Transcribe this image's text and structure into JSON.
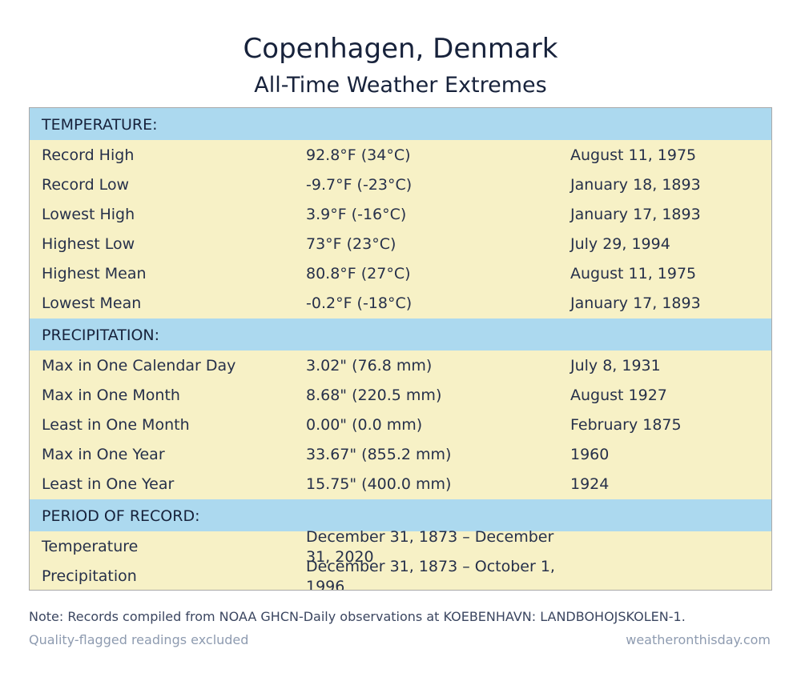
{
  "header": {
    "title": "Copenhagen, Denmark",
    "subtitle": "All-Time Weather Extremes"
  },
  "sections": [
    {
      "heading": "TEMPERATURE:",
      "rows": [
        {
          "label": "Record High",
          "value": "92.8°F (34°C)",
          "date": "August 11, 1975"
        },
        {
          "label": "Record Low",
          "value": "-9.7°F (-23°C)",
          "date": "January 18, 1893"
        },
        {
          "label": "Lowest High",
          "value": "3.9°F (-16°C)",
          "date": "January 17, 1893"
        },
        {
          "label": "Highest Low",
          "value": "73°F (23°C)",
          "date": "July 29, 1994"
        },
        {
          "label": "Highest Mean",
          "value": "80.8°F (27°C)",
          "date": "August 11, 1975"
        },
        {
          "label": "Lowest Mean",
          "value": "-0.2°F (-18°C)",
          "date": "January 17, 1893"
        }
      ]
    },
    {
      "heading": "PRECIPITATION:",
      "rows": [
        {
          "label": "Max in One Calendar Day",
          "value": "3.02\" (76.8 mm)",
          "date": "July 8, 1931"
        },
        {
          "label": "Max in One Month",
          "value": "8.68\" (220.5 mm)",
          "date": "August 1927"
        },
        {
          "label": "Least in One Month",
          "value": "0.00\" (0.0 mm)",
          "date": "February 1875"
        },
        {
          "label": "Max in One Year",
          "value": "33.67\" (855.2 mm)",
          "date": "1960"
        },
        {
          "label": "Least in One Year",
          "value": "15.75\" (400.0 mm)",
          "date": "1924"
        }
      ]
    },
    {
      "heading": "PERIOD OF RECORD:",
      "rows": [
        {
          "label": "Temperature",
          "value": "December 31, 1873 – December 31, 2020",
          "date": ""
        },
        {
          "label": "Precipitation",
          "value": "December 31, 1873 – October 1, 1996",
          "date": ""
        }
      ]
    }
  ],
  "footer": {
    "note": "Note: Records compiled from NOAA GHCN-Daily observations at KOEBENHAVN: LANDBOHOJSKOLEN-1.",
    "quality": "Quality-flagged readings excluded",
    "source": "weatheronthisday.com"
  },
  "colors": {
    "section_header_bg": "#acd9ef",
    "row_bg": "#f7f1c6",
    "border": "#a9a9a9",
    "text": "#17223b",
    "muted": "#8e9bb0"
  }
}
